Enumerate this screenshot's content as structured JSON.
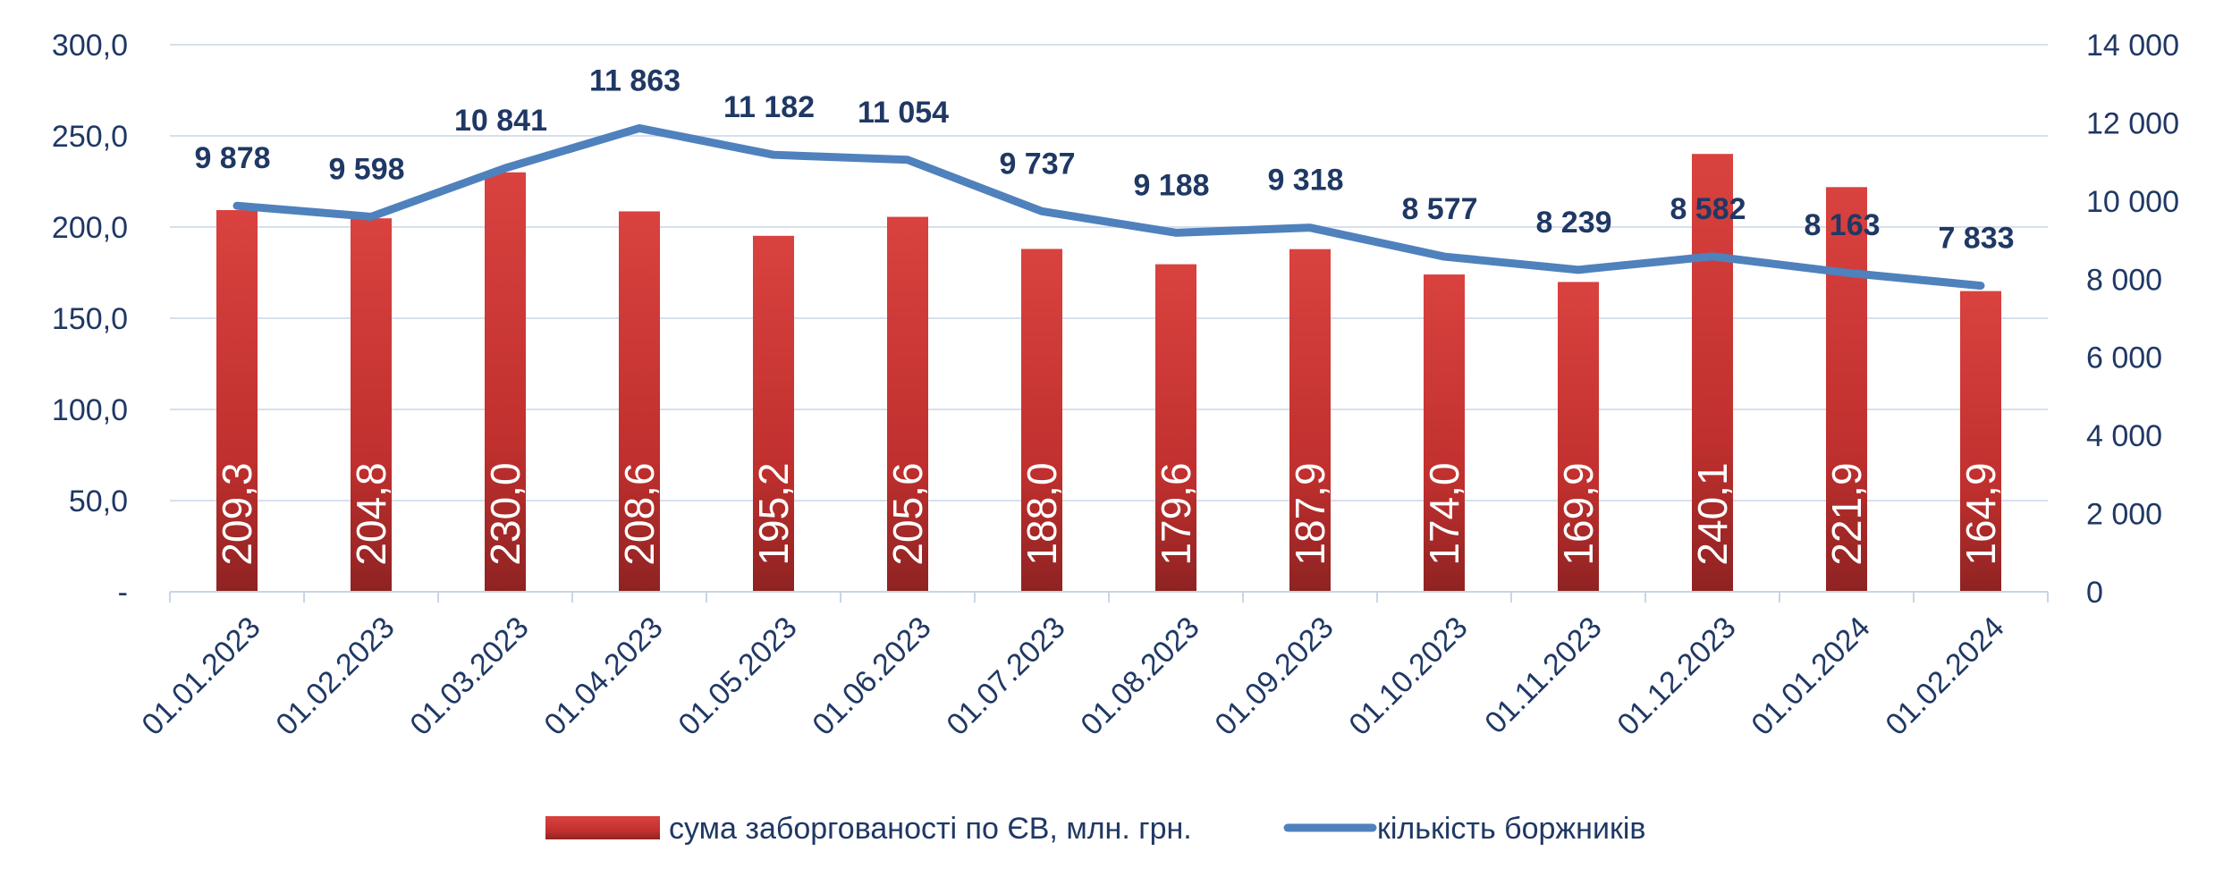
{
  "chart_data": {
    "type": "bar",
    "categories": [
      "01.01.2023",
      "01.02.2023",
      "01.03.2023",
      "01.04.2023",
      "01.05.2023",
      "01.06.2023",
      "01.07.2023",
      "01.08.2023",
      "01.09.2023",
      "01.10.2023",
      "01.11.2023",
      "01.12.2023",
      "01.01.2024",
      "01.02.2024"
    ],
    "series": [
      {
        "name": "сума заборгованості по ЄВ, млн. грн.",
        "type": "bar",
        "axis": "left",
        "values": [
          209.3,
          204.8,
          230.0,
          208.6,
          195.2,
          205.6,
          188.0,
          179.6,
          187.9,
          174.0,
          169.9,
          240.1,
          221.9,
          164.9
        ],
        "labels": [
          "209,3",
          "204,8",
          "230,0",
          "208,6",
          "195,2",
          "205,6",
          "188,0",
          "179,6",
          "187,9",
          "174,0",
          "169,9",
          "240,1",
          "221,9",
          "164,9"
        ],
        "color": "#c0302e"
      },
      {
        "name": "кількість боржників",
        "type": "line",
        "axis": "right",
        "values": [
          9878,
          9598,
          10841,
          11863,
          11182,
          11054,
          9737,
          9188,
          9318,
          8577,
          8239,
          8582,
          8163,
          7833
        ],
        "labels": [
          "9 878",
          "9 598",
          "10 841",
          "11 863",
          "11 182",
          "11 054",
          "9 737",
          "9 188",
          "9 318",
          "8 577",
          "8 239",
          "8 582",
          "8 163",
          "7 833"
        ],
        "color": "#4f81bd"
      }
    ],
    "y_left": {
      "min": 0,
      "max": 300,
      "ticks": [
        "-",
        "50,0",
        "100,0",
        "150,0",
        "200,0",
        "250,0",
        "300,0"
      ]
    },
    "y_right": {
      "min": 0,
      "max": 14000,
      "ticks": [
        "0",
        "2 000",
        "4 000",
        "6 000",
        "8 000",
        "10 000",
        "12 000",
        "14 000"
      ]
    },
    "grid": true,
    "legend_position": "bottom"
  }
}
